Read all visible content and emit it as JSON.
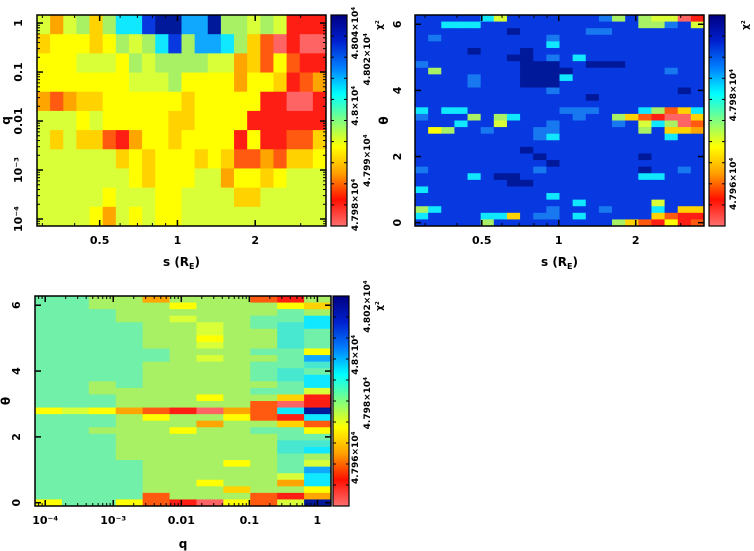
{
  "colormap": {
    "0": "#ff6464",
    "1": "#ff1e14",
    "2": "#ff5a10",
    "3": "#ffa500",
    "4": "#ffd200",
    "5": "#ffff00",
    "6": "#d8ff38",
    "7": "#a8f064",
    "8": "#70f0a8",
    "9": "#48e8d0",
    "c": "#10e8ff",
    "d": "#10a8ff",
    "e": "#1878f0",
    "a": "#0838e0",
    "b": "#00189a"
  },
  "colorbar_gradient": [
    "#000080",
    "#0020d0",
    "#0080ff",
    "#00ffff",
    "#80ff80",
    "#ffff00",
    "#ffa000",
    "#ff1000",
    "#ff7070"
  ],
  "chart_data": [
    {
      "type": "heatmap",
      "xlabel": {
        "text": "s (R",
        "sub": "E",
        "tail": ")"
      },
      "ylabel": "q",
      "x_scale": "log",
      "xlim": [
        0.286,
        3.76
      ],
      "y_scale": "log",
      "ylim": [
        7.2e-05,
        1.46
      ],
      "x_ticks": [
        {
          "value": 0.5,
          "label": "0.5"
        },
        {
          "value": 1,
          "label": "1"
        },
        {
          "value": 2,
          "label": "2"
        }
      ],
      "y_ticks": [
        {
          "value": 1,
          "label": "1"
        },
        {
          "value": 0.1,
          "label": "0.1"
        },
        {
          "value": 0.01,
          "label": "0.01"
        },
        {
          "value": 0.001,
          "label": "10⁻³"
        },
        {
          "value": 0.0001,
          "label": "10⁻⁴"
        }
      ],
      "colorbar": {
        "label": "χ²",
        "ticks": [
          {
            "label": "4.798×10⁴",
            "level": 0.1
          },
          {
            "label": "4.799×10⁴",
            "level": 0.31
          },
          {
            "label": "4.8×10⁴",
            "level": 0.57
          },
          {
            "label": "4.802×10⁴",
            "level": 0.79
          },
          {
            "label": "4.804×10⁴",
            "level": 0.96
          }
        ]
      },
      "grid": [
        "636747ccabbddb77676111",
        "455545767ca7ddc7420100",
        "5556665767777663425211",
        "5555555666755553554123",
        "3234455555545555511001",
        "6665655555445555111111",
        "6464421355455551511224",
        "6666664545554542232445",
        "6666666545556635545666",
        "6666656665566664466666",
        "6666536565566666666666"
      ]
    },
    {
      "type": "heatmap",
      "xlabel": {
        "text": "s (R",
        "sub": "E",
        "tail": ")"
      },
      "ylabel": "θ",
      "x_scale": "log",
      "xlim": [
        0.274,
        3.7
      ],
      "y_scale": "linear",
      "ylim": [
        -0.1,
        6.28
      ],
      "x_ticks": [
        {
          "value": 0.5,
          "label": "0.5"
        },
        {
          "value": 1,
          "label": "1"
        },
        {
          "value": 2,
          "label": "2"
        }
      ],
      "y_ticks": [
        {
          "value": 0,
          "label": "0"
        },
        {
          "value": 2,
          "label": "2"
        },
        {
          "value": 4,
          "label": "4"
        },
        {
          "value": 6,
          "label": "6"
        }
      ],
      "colorbar": {
        "label": "χ²",
        "ticks": [
          {
            "label": "4.796×10⁴",
            "level": 0.2
          },
          {
            "label": "4.798×10⁴",
            "level": 0.62
          }
        ]
      },
      "grid": [
        "aaaaac6aaaaaaae7a76601",
        "aacccaaaaaaaaaaaa77ea6",
        "aaaaaaabaaaaaeeaaaaaaa",
        "aeaaaaaaaaeaaaaaaaaaaa",
        "aaaaaaaaaacaaaaaaaaaaa",
        "aaaabaaabaaaaaaaaaaaaa",
        "aaaaaaabbaeacaaaaaaaaa",
        "eaaaaaaabbbaabbbaaaaaa",
        "a7aaaaaabbbbaaaaaaaeaa",
        "aaaaeaaabbbcaaaaaaaaaa",
        "aaaaeaaabbbaaaaaaaaaaa",
        "aaaaaaaaaaeaaaaaaaaaba",
        "aaaaaaaaaaaaabaaaaaaaa",
        "aaaaaaaaaaaaaaaaaaaaaa",
        "caccaaaaaaaeeeaaac724c",
        "eaaa7a7caaaaeaa7421004",
        "aaacaa6aaaeaaaaea6c702",
        "a57aaeaaaeeaaaaaa7a443",
        "aaaaaaaaaecaaaaaaaacaa",
        "aaaaaaaaaaaaaaaaaaaaaa",
        "aaaaaaaabaaaaaaaaaaaaa",
        "aaaaaaaaabaaaaaaabaaaa",
        "aaaaaaaaaabaaaaaaaaaaa",
        "eaaaaaaaaeaaaaaaabaaea",
        "aaaacabbaaaaaaaaaccaaa",
        "aaaaaaabbaaaaaaaaaaaaa",
        "caaaaaaaaaaaaaaaaaaaaa",
        "aaaaaaaaaacaaaaaaaaaaa",
        "aaaaaaaaaaaacaaaaa6aaa",
        "7caaaaaaaaeaaaeaaaca44",
        "caaaacc4aeeacaaaaa4211",
        "aaaaa7aaaaaaaaa7421512"
      ]
    },
    {
      "type": "heatmap",
      "xlabel": {
        "text": "q",
        "sub": "",
        "tail": ""
      },
      "ylabel": "θ",
      "x_scale": "log",
      "xlim": [
        7.08e-05,
        1.585
      ],
      "y_scale": "linear",
      "ylim": [
        -0.1,
        6.28
      ],
      "x_ticks": [
        {
          "value": 0.0001,
          "label": "10⁻⁴"
        },
        {
          "value": 0.001,
          "label": "10⁻³"
        },
        {
          "value": 0.01,
          "label": "0.01"
        },
        {
          "value": 0.1,
          "label": "0.1"
        },
        {
          "value": 1,
          "label": "1"
        }
      ],
      "y_ticks": [
        {
          "value": 0,
          "label": "0"
        },
        {
          "value": 2,
          "label": "2"
        },
        {
          "value": 4,
          "label": "4"
        },
        {
          "value": 6,
          "label": "6"
        }
      ],
      "colorbar": {
        "label": "χ²",
        "ticks": [
          {
            "label": "4.796×10⁴",
            "level": 0.23
          },
          {
            "label": "4.798×10⁴",
            "level": 0.49
          },
          {
            "label": "4.8×10⁴",
            "level": 0.72
          },
          {
            "label": "4.802×10⁴",
            "level": 0.95
          }
        ]
      },
      "grid": [
        "88773777217",
        "88777577754",
        "88877777787",
        "8887767788c",
        "8888776789c",
        "88887767798",
        "88887757798",
        "88887767798",
        "88888777885",
        "8888876778d",
        "88887777889",
        "88887777898",
        "8888777789c",
        "8878777778c",
        "88777777886",
        "88877757741",
        "88877777201",
        "565321032cb",
        "8887577521c",
        "88877737742",
        "88777577885",
        "88877777788",
        "88877777799",
        "8887777779c",
        "88877777787",
        "88887775786",
        "8888777778d",
        "8888777776c",
        "8888775773c",
        "88887774775",
        "88882777213",
        "5885210526b"
      ]
    }
  ]
}
